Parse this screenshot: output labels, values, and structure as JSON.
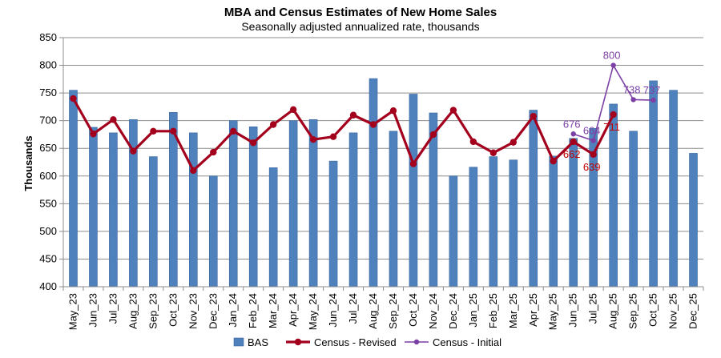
{
  "chart_data": {
    "type": "bar",
    "title": "MBA and Census Estimates of New Home Sales",
    "subtitle": "Seasonally adjusted annualized rate, thousands",
    "ylabel": "Thousands",
    "xlabel": "",
    "ylim": [
      400,
      850
    ],
    "yticks": [
      400,
      450,
      500,
      550,
      600,
      650,
      700,
      750,
      800,
      850
    ],
    "grid": true,
    "legend_position": "bottom",
    "categories": [
      "May_23",
      "Jun_23",
      "Jul_23",
      "Aug_23",
      "Sep_23",
      "Oct_23",
      "Nov_23",
      "Dec_23",
      "Jan_24",
      "Feb_24",
      "Mar_24",
      "Apr_24",
      "May_24",
      "Jun_24",
      "Jul_24",
      "Aug_24",
      "Sep_24",
      "Oct_24",
      "Nov_24",
      "Dec_24",
      "Jan_25",
      "Feb_25",
      "Mar_25",
      "Apr_25",
      "May_25",
      "Jun_25",
      "Jul_25",
      "Aug_25",
      "Sep_25",
      "Oct_25",
      "Nov_25",
      "Dec_25"
    ],
    "series": [
      {
        "name": "BAS",
        "kind": "bar",
        "color": "#4f81bd",
        "values": [
          755,
          688,
          678,
          702,
          635,
          715,
          678,
          600,
          700,
          689,
          615,
          700,
          702,
          627,
          678,
          776,
          681,
          748,
          714,
          600,
          616,
          635,
          629,
          719,
          636,
          668,
          686,
          730,
          681,
          772,
          755,
          641
        ]
      },
      {
        "name": "Census - Revised",
        "kind": "line",
        "color": "#a3001e",
        "values": [
          740,
          676,
          702,
          645,
          681,
          681,
          610,
          643,
          681,
          660,
          693,
          720,
          666,
          671,
          710,
          693,
          718,
          622,
          675,
          719,
          662,
          642,
          661,
          708,
          627,
          662,
          639,
          711,
          null,
          null,
          null,
          null
        ]
      },
      {
        "name": "Census - Initial",
        "kind": "line",
        "color": "#7b3fa5",
        "values": [
          null,
          null,
          null,
          null,
          null,
          null,
          null,
          null,
          null,
          null,
          null,
          null,
          null,
          null,
          null,
          null,
          null,
          null,
          null,
          null,
          null,
          null,
          null,
          null,
          null,
          676,
          664,
          800,
          738,
          737,
          null,
          null
        ]
      }
    ],
    "data_labels": [
      {
        "series": "Census - Initial",
        "category": "Jun_25",
        "text": "676",
        "color": "#7b3fa5"
      },
      {
        "series": "Census - Initial",
        "category": "Jul_25",
        "text": "664",
        "color": "#7b3fa5"
      },
      {
        "series": "Census - Initial",
        "category": "Aug_25",
        "text": "800",
        "color": "#7b3fa5"
      },
      {
        "series": "Census - Initial",
        "category": "Sep_25",
        "text": "738",
        "color": "#7b3fa5"
      },
      {
        "series": "Census - Initial",
        "category": "Oct_25",
        "text": "737",
        "color": "#7b3fa5"
      },
      {
        "series": "Census - Revised",
        "category": "Jun_25",
        "text": "662",
        "color": "#c00000"
      },
      {
        "series": "Census - Revised",
        "category": "Jul_25",
        "text": "639",
        "color": "#c00000"
      },
      {
        "series": "Census - Revised",
        "category": "Aug_25",
        "text": "711",
        "color": "#c00000"
      }
    ]
  }
}
